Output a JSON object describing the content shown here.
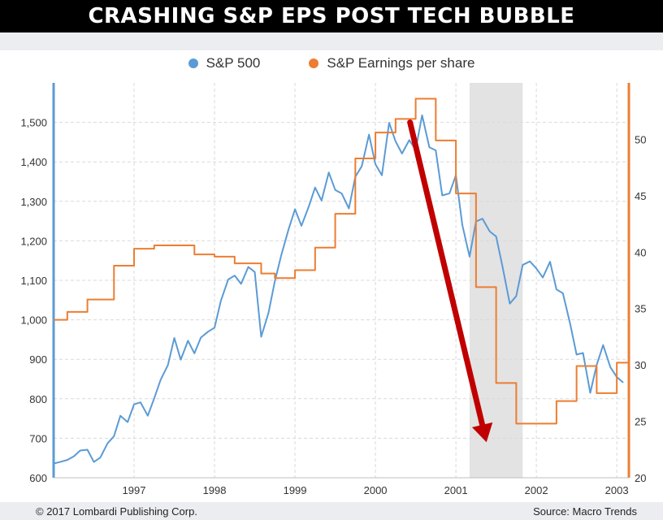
{
  "header": {
    "title": "CRASHING S&P EPS POST TECH BUBBLE"
  },
  "legend": {
    "sp500_label": "S&P 500",
    "eps_label": "S&P Earnings per share"
  },
  "footer": {
    "copyright": "© 2017 Lombardi Publishing Corp.",
    "source": "Source: Macro Trends"
  },
  "colors": {
    "sp500": "#5b9bd5",
    "eps": "#ed7d31",
    "arrow": "#c00000",
    "recession_shade": "#e3e3e3",
    "left_axis": "#5b9bd5",
    "right_axis": "#ed7d31"
  },
  "chart_data": {
    "type": "line",
    "xlim": [
      1996.0,
      2003.15
    ],
    "x_ticks": [
      1997,
      1998,
      1999,
      2000,
      2001,
      2002,
      2003
    ],
    "x_tick_labels": [
      "1997",
      "1998",
      "1999",
      "2000",
      "2001",
      "2002",
      "2003"
    ],
    "y_left": {
      "lim": [
        600,
        1600
      ],
      "ticks": [
        600,
        700,
        800,
        900,
        1000,
        1100,
        1200,
        1300,
        1400,
        1500
      ],
      "tick_labels": [
        "600",
        "700",
        "800",
        "900",
        "1,000",
        "1,100",
        "1,200",
        "1,300",
        "1,400",
        "1,500"
      ]
    },
    "y_right": {
      "lim": [
        20,
        55
      ],
      "ticks": [
        20,
        25,
        30,
        35,
        40,
        45,
        50
      ],
      "tick_labels": [
        "20",
        "25",
        "30",
        "35",
        "40",
        "45",
        "50"
      ]
    },
    "grid": true,
    "recession_shading": [
      2001.17,
      2001.83
    ],
    "annotations": [
      {
        "type": "arrow",
        "from": [
          2000.43,
          1500
        ],
        "to": [
          2001.38,
          690
        ]
      }
    ],
    "series": [
      {
        "name": "S&P 500",
        "axis": "left",
        "x": [
          1996.0,
          1996.08,
          1996.17,
          1996.25,
          1996.33,
          1996.42,
          1996.5,
          1996.58,
          1996.67,
          1996.75,
          1996.83,
          1996.92,
          1997.0,
          1997.08,
          1997.17,
          1997.25,
          1997.33,
          1997.42,
          1997.5,
          1997.58,
          1997.67,
          1997.75,
          1997.83,
          1997.92,
          1998.0,
          1998.08,
          1998.17,
          1998.25,
          1998.33,
          1998.42,
          1998.5,
          1998.58,
          1998.67,
          1998.75,
          1998.83,
          1998.92,
          1999.0,
          1999.08,
          1999.17,
          1999.25,
          1999.33,
          1999.42,
          1999.5,
          1999.58,
          1999.67,
          1999.75,
          1999.83,
          1999.92,
          2000.0,
          2000.08,
          2000.17,
          2000.25,
          2000.33,
          2000.42,
          2000.5,
          2000.58,
          2000.67,
          2000.75,
          2000.83,
          2000.92,
          2001.0,
          2001.08,
          2001.17,
          2001.25,
          2001.33,
          2001.42,
          2001.5,
          2001.58,
          2001.67,
          2001.75,
          2001.83,
          2001.92,
          2002.0,
          2002.08,
          2002.17,
          2002.25,
          2002.33,
          2002.42,
          2002.5,
          2002.58,
          2002.67,
          2002.75,
          2002.83,
          2002.92,
          2003.0,
          2003.08
        ],
        "values": [
          636,
          640,
          645,
          654,
          669,
          671,
          640,
          651,
          687,
          705,
          757,
          741,
          786,
          791,
          757,
          801,
          848,
          885,
          954,
          899,
          947,
          915,
          955,
          970,
          980,
          1049,
          1102,
          1112,
          1091,
          1134,
          1121,
          957,
          1017,
          1098,
          1164,
          1229,
          1280,
          1238,
          1286,
          1335,
          1302,
          1373,
          1329,
          1320,
          1282,
          1362,
          1389,
          1469,
          1394,
          1366,
          1499,
          1452,
          1421,
          1455,
          1431,
          1518,
          1437,
          1429,
          1315,
          1320,
          1366,
          1240,
          1160,
          1249,
          1256,
          1224,
          1211,
          1134,
          1041,
          1060,
          1139,
          1148,
          1130,
          1107,
          1147,
          1077,
          1067,
          990,
          912,
          916,
          815,
          886,
          936,
          880,
          855,
          841
        ]
      },
      {
        "name": "S&P Earnings per share",
        "axis": "right",
        "step": true,
        "x": [
          1996.0,
          1996.17,
          1996.42,
          1996.75,
          1997.0,
          1997.25,
          1997.75,
          1998.0,
          1998.25,
          1998.58,
          1998.75,
          1999.0,
          1999.25,
          1999.5,
          1999.75,
          2000.0,
          2000.25,
          2000.5,
          2000.75,
          2001.0,
          2001.25,
          2001.5,
          2001.75,
          2002.0,
          2002.25,
          2002.5,
          2002.75,
          2003.0,
          2003.15
        ],
        "values": [
          34.0,
          34.7,
          35.8,
          38.8,
          40.3,
          40.6,
          39.8,
          39.6,
          39.0,
          38.1,
          37.7,
          38.4,
          40.4,
          43.4,
          48.3,
          50.6,
          51.8,
          53.6,
          49.9,
          45.2,
          36.9,
          28.4,
          24.8,
          24.8,
          26.8,
          29.9,
          27.5,
          30.2,
          30.2
        ]
      }
    ]
  }
}
